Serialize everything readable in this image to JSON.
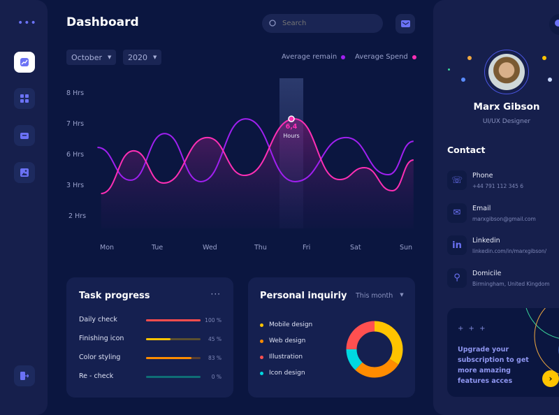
{
  "header": {
    "title": "Dashboard",
    "search_placeholder": "Search"
  },
  "filters": {
    "month": "October",
    "year": "2020"
  },
  "legend": [
    {
      "label": "Average remain",
      "color": "#a020f0"
    },
    {
      "label": "Average Spend",
      "color": "#ff2fb5"
    }
  ],
  "chart_data": {
    "type": "line",
    "x_categories": [
      "Mon",
      "Tue",
      "Wed",
      "Thu",
      "Fri",
      "Sat",
      "Sun"
    ],
    "y_ticks": [
      "8 Hrs",
      "7 Hrs",
      "6 Hrs",
      "3 Hrs",
      "2 Hrs"
    ],
    "y_tick_values": [
      8,
      7,
      6,
      3,
      2
    ],
    "series": [
      {
        "name": "Average remain",
        "color": "#a020f0",
        "points": [
          [
            -0.21,
            6.25
          ],
          [
            0.43,
            3.55
          ],
          [
            1.09,
            6.7
          ],
          [
            1.8,
            3.41
          ],
          [
            2.67,
            7.18
          ],
          [
            3.67,
            3.41
          ],
          [
            4.74,
            6.57
          ],
          [
            5.6,
            4.09
          ],
          [
            6.11,
            6.45
          ]
        ]
      },
      {
        "name": "Average Spend",
        "color": "#ff2fb5",
        "points": [
          [
            -0.14,
            2.75
          ],
          [
            0.49,
            6.14
          ],
          [
            1.07,
            3.27
          ],
          [
            1.93,
            6.57
          ],
          [
            2.65,
            4.02
          ],
          [
            3.66,
            7.18
          ],
          [
            4.6,
            3.61
          ],
          [
            5.12,
            4.77
          ],
          [
            5.68,
            2.84
          ],
          [
            6.11,
            5.52
          ]
        ]
      }
    ],
    "highlight": {
      "value": "6,4",
      "unit": "Hours"
    },
    "grid": false
  },
  "task_progress": {
    "title": "Task progress",
    "items": [
      {
        "label": "Daily check",
        "percent": 100,
        "percent_label": "100 %",
        "color": "#ff4d4d",
        "track": "#5a2a3a"
      },
      {
        "label": "Finishing icon",
        "percent": 45,
        "percent_label": "45 %",
        "color": "#ffc400",
        "track": "#5b5030"
      },
      {
        "label": "Color styling",
        "percent": 83,
        "percent_label": "83 %",
        "color": "#ff8c00",
        "track": "#5b4030"
      },
      {
        "label": "Re - check",
        "percent": 0,
        "percent_label": "0 %",
        "color": "#0f8a8a",
        "track": "#0f6e75"
      }
    ]
  },
  "inquiry": {
    "title": "Personal inquiriy",
    "period": "This month",
    "items": [
      {
        "label": "Mobile design",
        "color": "#ffc400",
        "share": 34
      },
      {
        "label": "Web design",
        "color": "#ff8c00",
        "share": 28
      },
      {
        "label": "Illustration",
        "color": "#ff5050",
        "share": 25
      },
      {
        "label": "Icon design",
        "color": "#00d8e0",
        "share": 13
      }
    ],
    "slice_order": [
      "Mobile design",
      "Web design",
      "Icon design",
      "Illustration"
    ]
  },
  "profile": {
    "name": "Marx Gibson",
    "role": "UI/UX Designer"
  },
  "contact": {
    "title": "Contact",
    "items": [
      {
        "label": "Phone",
        "value": "+44 791 112 345 6"
      },
      {
        "label": "Email",
        "value": "marxgibson@gmail.com"
      },
      {
        "label": "Linkedin",
        "value": "linkedin.com/in/marxgibson/"
      },
      {
        "label": "Domicile",
        "value": "Birmingham, United Kingdom"
      }
    ]
  },
  "upgrade": {
    "stars": "+ + +",
    "text": "Upgrade your subscription to get more amazing features acces"
  }
}
